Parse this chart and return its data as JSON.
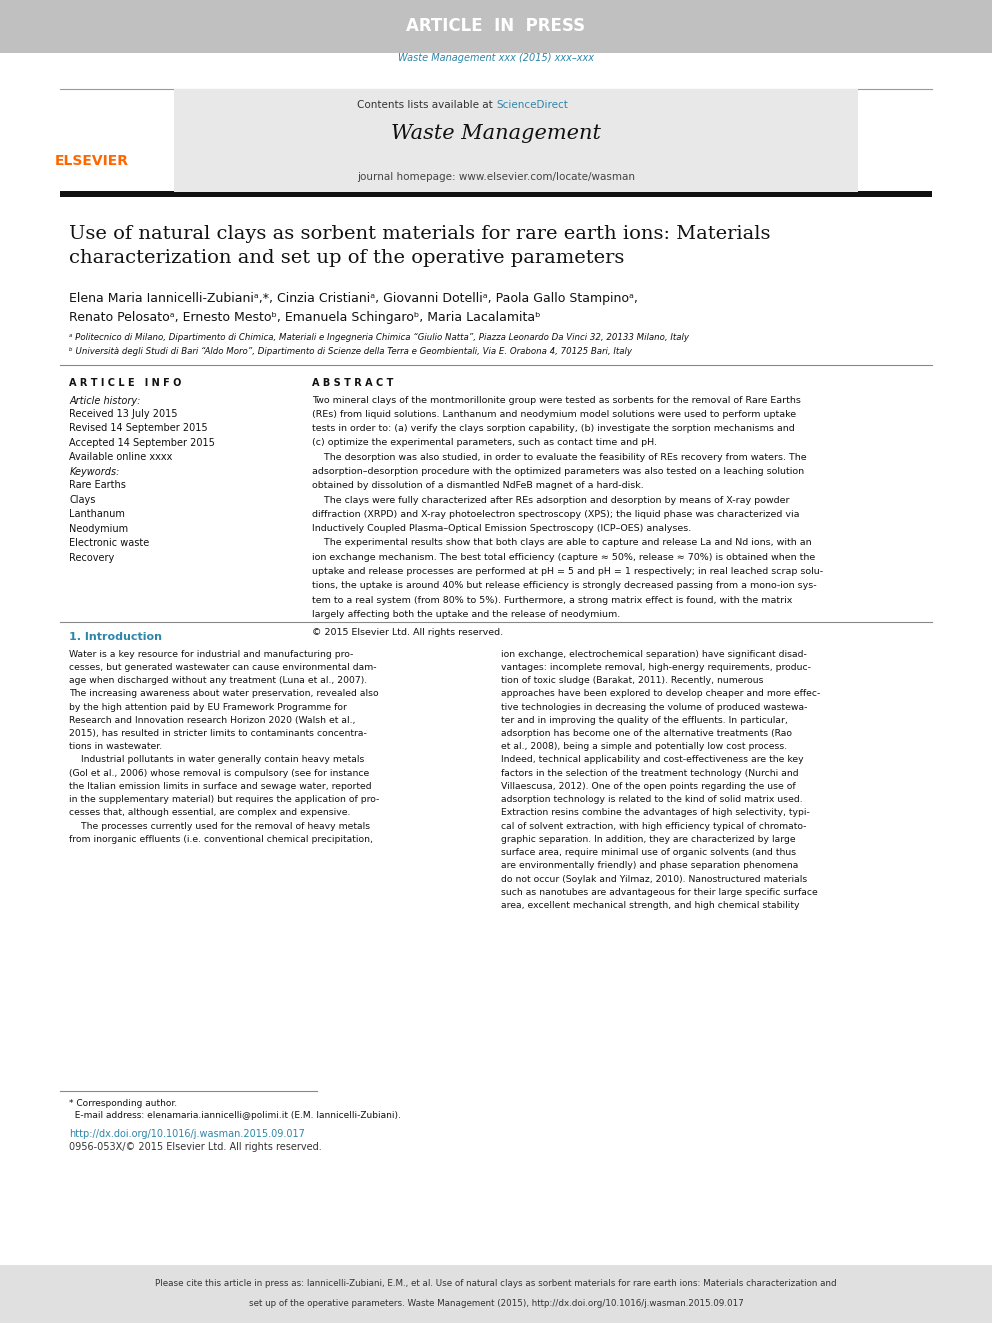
{
  "fig_width": 9.92,
  "fig_height": 13.23,
  "bg_color": "#ffffff",
  "header_bar_color": "#c0c0c0",
  "header_text": "ARTICLE  IN  PRESS",
  "header_text_color": "#ffffff",
  "journal_ref_color": "#2E86AB",
  "journal_ref": "Waste Management xxx (2015) xxx–xxx",
  "elsevier_color": "#FF6600",
  "elsevier_text": "ELSEVIER",
  "journal_header_bg": "#e8e8e8",
  "contents_text": "Contents lists available at ",
  "sciencedirect_text": "ScienceDirect",
  "sciencedirect_color": "#2E86AB",
  "journal_name": "Waste Management",
  "homepage_text": "journal homepage: www.elsevier.com/locate/wasman",
  "article_title": "Use of natural clays as sorbent materials for rare earth ions: Materials\ncharacterization and set up of the operative parameters",
  "authors_line1": "Elena Maria Iannicelli-Zubianiᵃ,*, Cinzia Cristianiᵃ, Giovanni Dotelliᵃ, Paola Gallo Stampinoᵃ,",
  "authors_line2": "Renato Pelosatoᵃ, Ernesto Mestoᵇ, Emanuela Schingaroᵇ, Maria Lacalamitaᵇ",
  "affil_a": "ᵃ Politecnico di Milano, Dipartimento di Chimica, Materiali e Ingegneria Chimica “Giulio Natta”, Piazza Leonardo Da Vinci 32, 20133 Milano, Italy",
  "affil_b": "ᵇ Università degli Studi di Bari “Aldo Moro”, Dipartimento di Scienze della Terra e Geombientali, Via E. Orabona 4, 70125 Bari, Italy",
  "article_info_title": "A R T I C L E   I N F O",
  "abstract_title": "A B S T R A C T",
  "article_history": "Article history:",
  "received": "Received 13 July 2015",
  "revised": "Revised 14 September 2015",
  "accepted": "Accepted 14 September 2015",
  "available": "Available online xxxx",
  "keywords_title": "Keywords:",
  "keywords": [
    "Rare Earths",
    "Clays",
    "Lanthanum",
    "Neodymium",
    "Electronic waste",
    "Recovery"
  ],
  "abstract_text": [
    "Two mineral clays of the montmorillonite group were tested as sorbents for the removal of Rare Earths",
    "(REs) from liquid solutions. Lanthanum and neodymium model solutions were used to perform uptake",
    "tests in order to: (a) verify the clays sorption capability, (b) investigate the sorption mechanisms and",
    "(c) optimize the experimental parameters, such as contact time and pH.",
    "    The desorption was also studied, in order to evaluate the feasibility of REs recovery from waters. The",
    "adsorption–desorption procedure with the optimized parameters was also tested on a leaching solution",
    "obtained by dissolution of a dismantled NdFeB magnet of a hard-disk.",
    "    The clays were fully characterized after REs adsorption and desorption by means of X-ray powder",
    "diffraction (XRPD) and X-ray photoelectron spectroscopy (XPS); the liquid phase was characterized via",
    "Inductively Coupled Plasma–Optical Emission Spectroscopy (ICP–OES) analyses.",
    "    The experimental results show that both clays are able to capture and release La and Nd ions, with an",
    "ion exchange mechanism. The best total efficiency (capture ≈ 50%, release ≈ 70%) is obtained when the",
    "uptake and release processes are performed at pH = 5 and pH = 1 respectively; in real leached scrap solu-",
    "tions, the uptake is around 40% but release efficiency is strongly decreased passing from a mono-ion sys-",
    "tem to a real system (from 80% to 5%). Furthermore, a strong matrix effect is found, with the matrix",
    "largely affecting both the uptake and the release of neodymium."
  ],
  "copyright_text": "© 2015 Elsevier Ltd. All rights reserved.",
  "section1_title": "1. Introduction",
  "intro_col1": [
    "Water is a key resource for industrial and manufacturing pro-",
    "cesses, but generated wastewater can cause environmental dam-",
    "age when discharged without any treatment (Luna et al., 2007).",
    "The increasing awareness about water preservation, revealed also",
    "by the high attention paid by EU Framework Programme for",
    "Research and Innovation research Horizon 2020 (Walsh et al.,",
    "2015), has resulted in stricter limits to contaminants concentra-",
    "tions in wastewater.",
    "    Industrial pollutants in water generally contain heavy metals",
    "(Gol et al., 2006) whose removal is compulsory (see for instance",
    "the Italian emission limits in surface and sewage water, reported",
    "in the supplementary material) but requires the application of pro-",
    "cesses that, although essential, are complex and expensive.",
    "    The processes currently used for the removal of heavy metals",
    "from inorganic effluents (i.e. conventional chemical precipitation,"
  ],
  "intro_col2": [
    "ion exchange, electrochemical separation) have significant disad-",
    "vantages: incomplete removal, high-energy requirements, produc-",
    "tion of toxic sludge (Barakat, 2011). Recently, numerous",
    "approaches have been explored to develop cheaper and more effec-",
    "tive technologies in decreasing the volume of produced wastewa-",
    "ter and in improving the quality of the effluents. In particular,",
    "adsorption has become one of the alternative treatments (Rao",
    "et al., 2008), being a simple and potentially low cost process.",
    "Indeed, technical applicability and cost-effectiveness are the key",
    "factors in the selection of the treatment technology (Nurchi and",
    "Villaescusa, 2012). One of the open points regarding the use of",
    "adsorption technology is related to the kind of solid matrix used.",
    "Extraction resins combine the advantages of high selectivity, typi-",
    "cal of solvent extraction, with high efficiency typical of chromato-",
    "graphic separation. In addition, they are characterized by large",
    "surface area, require minimal use of organic solvents (and thus",
    "are environmentally friendly) and phase separation phenomena",
    "do not occur (Soylak and Yilmaz, 2010). Nanostructured materials",
    "such as nanotubes are advantageous for their large specific surface",
    "area, excellent mechanical strength, and high chemical stability"
  ],
  "footnote_star": "* Corresponding author.",
  "footnote_email": "  E-mail address: elenamaria.iannicelli@polimi.it (E.M. Iannicelli-Zubiani).",
  "doi_text": "http://dx.doi.org/10.1016/j.wasman.2015.09.017",
  "issn_text": "0956-053X/© 2015 Elsevier Ltd. All rights reserved.",
  "footer_line1": "Please cite this article in press as: Iannicelli-Zubiani, E.M., et al. Use of natural clays as sorbent materials for rare earth ions: Materials characterization and",
  "footer_line2": "set up of the operative parameters. Waste Management (2015), http://dx.doi.org/10.1016/j.wasman.2015.09.017",
  "footer_bg": "#e0e0e0",
  "link_color": "#2E86AB"
}
